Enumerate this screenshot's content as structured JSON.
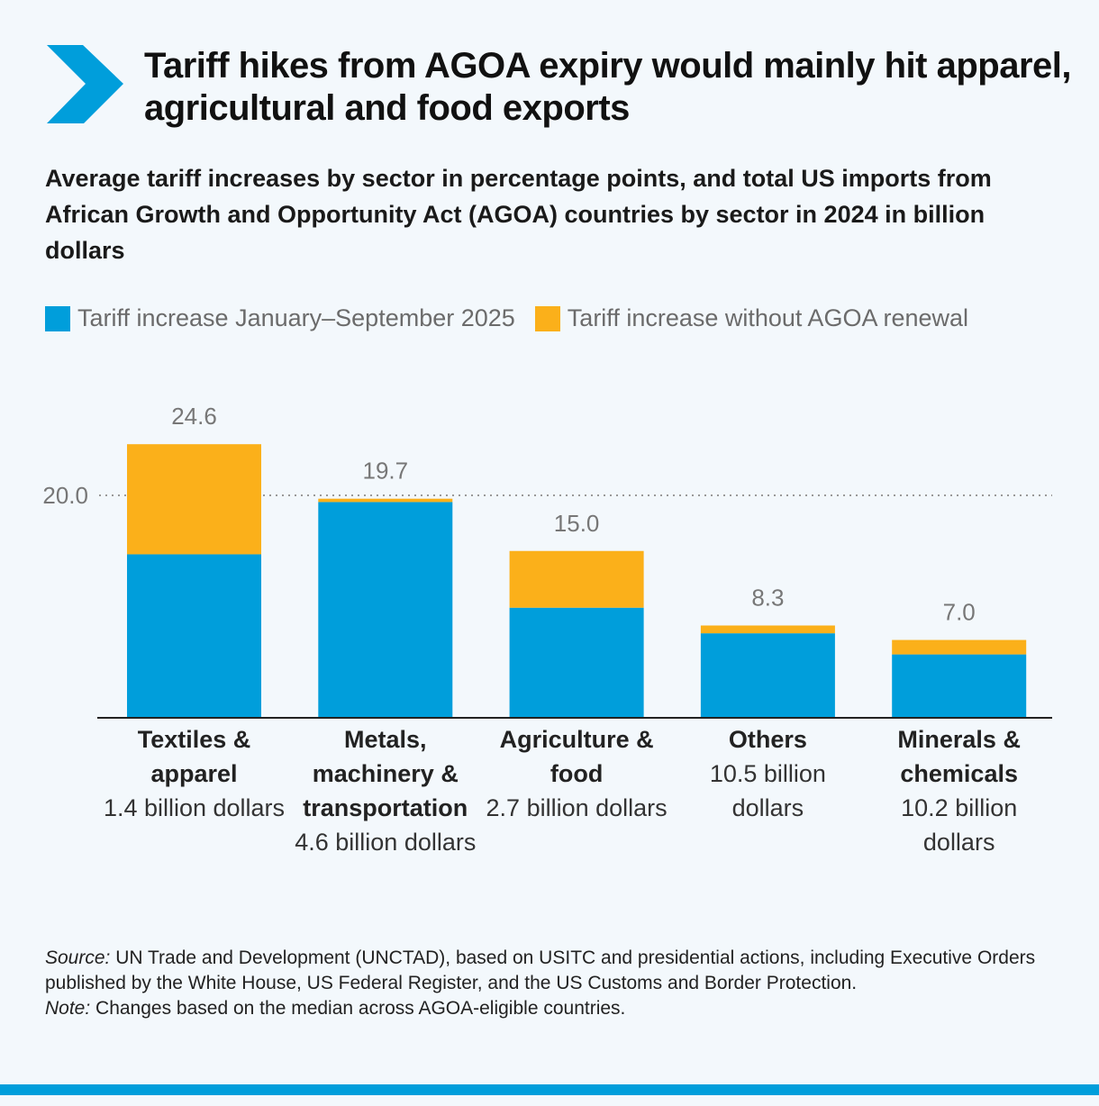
{
  "header": {
    "title": "Tariff hikes from AGOA expiry would mainly hit apparel, agricultural and food exports",
    "subtitle": "Average tariff increases by sector in percentage points, and total US imports from African Growth and Opportunity Act (AGOA) countries by sector in 2024 in billion dollars",
    "logo_icon": "chevron-right-icon"
  },
  "colors": {
    "accent": "#009edb",
    "series1": "#009edb",
    "series2": "#fbb01a",
    "grid": "#999999"
  },
  "chart_data": {
    "type": "bar",
    "stacked": true,
    "categories": [
      "Textiles & apparel",
      "Metals, machinery & transportation",
      "Agriculture & food",
      "Others",
      "Minerals & chemicals"
    ],
    "category_notes": [
      "1.4 billion dollars",
      "4.6 billion dollars",
      "2.7 billion dollars",
      "10.5 billion dollars",
      "10.2 billion dollars"
    ],
    "series": [
      {
        "name": "Tariff increase January–September 2025",
        "values": [
          14.7,
          19.4,
          9.9,
          7.6,
          5.7
        ]
      },
      {
        "name": "Tariff increase without AGOA renewal",
        "values": [
          9.9,
          0.3,
          5.1,
          0.7,
          1.3
        ]
      }
    ],
    "totals": [
      "24.6",
      "19.7",
      "15.0",
      "8.3",
      "7.0"
    ],
    "yticks": [
      "20.0"
    ],
    "ylim": [
      0,
      28
    ],
    "gridline": 20,
    "legend": "top-left"
  },
  "footer": {
    "source_label": "Source:",
    "source_text": " UN Trade and Development (UNCTAD), based on USITC and presidential actions, including Executive Orders published by the White House, US Federal Register, and the US Customs and Border Protection.",
    "note_label": "Note:",
    "note_text": " Changes based on the median across AGOA-eligible countries."
  }
}
